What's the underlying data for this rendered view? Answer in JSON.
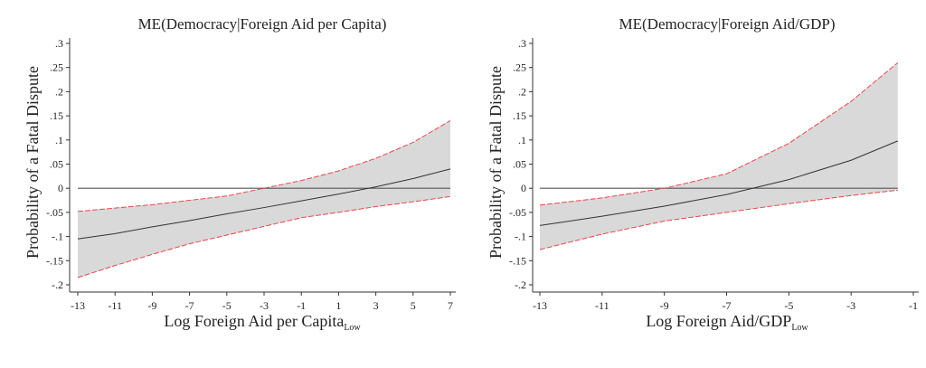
{
  "chart_data": [
    {
      "type": "line",
      "title": "ME(Democracy|Foreign Aid per Capita)",
      "xlabel": "Log Foreign Aid per Capita",
      "xlabel_subscript": "Low",
      "ylabel": "Probability of a Fatal Dispute",
      "xlim": [
        -13,
        7
      ],
      "ylim": [
        -0.2,
        0.3
      ],
      "xticks": [
        "-13",
        "-11",
        "-9",
        "-7",
        "-5",
        "-3",
        "-1",
        "1",
        "3",
        "5",
        "7"
      ],
      "yticks": [
        "-.2",
        "-.15",
        "-.1",
        "-.05",
        "0",
        ".05",
        ".1",
        ".15",
        ".2",
        ".25",
        ".3"
      ],
      "grid": false,
      "x": [
        -13,
        -11,
        -9,
        -7,
        -5,
        -3,
        -1,
        1,
        3,
        5,
        7
      ],
      "series": [
        {
          "role": "estimate",
          "values": [
            -0.105,
            -0.094,
            -0.08,
            -0.067,
            -0.053,
            -0.04,
            -0.026,
            -0.012,
            0.003,
            0.02,
            0.04
          ]
        },
        {
          "role": "upper",
          "values": [
            -0.048,
            -0.041,
            -0.034,
            -0.025,
            -0.016,
            0.0,
            0.016,
            0.036,
            0.062,
            0.095,
            0.14
          ]
        },
        {
          "role": "lower",
          "values": [
            -0.185,
            -0.16,
            -0.137,
            -0.115,
            -0.097,
            -0.079,
            -0.061,
            -0.05,
            -0.038,
            -0.028,
            -0.017
          ]
        }
      ],
      "reference_line": 0
    },
    {
      "type": "line",
      "title": "ME(Democracy|Foreign Aid/GDP)",
      "xlabel": "Log Foreign Aid/GDP",
      "xlabel_subscript": "Low",
      "ylabel": "Probability of a Fatal Dispute",
      "xlim": [
        -13,
        -1
      ],
      "ylim": [
        -0.2,
        0.3
      ],
      "xticks": [
        "-13",
        "-11",
        "-9",
        "-7",
        "-5",
        "-3",
        "-1"
      ],
      "yticks": [
        "-.2",
        "-.15",
        "-.1",
        "-.05",
        "0",
        ".05",
        ".1",
        ".15",
        ".2",
        ".25",
        ".3"
      ],
      "grid": false,
      "x": [
        -13,
        -11,
        -9,
        -7,
        -5,
        -3,
        -1.5
      ],
      "series": [
        {
          "role": "estimate",
          "values": [
            -0.077,
            -0.058,
            -0.037,
            -0.013,
            0.018,
            0.058,
            0.098
          ]
        },
        {
          "role": "upper",
          "values": [
            -0.035,
            -0.02,
            0.0,
            0.03,
            0.093,
            0.18,
            0.26
          ]
        },
        {
          "role": "lower",
          "values": [
            -0.127,
            -0.095,
            -0.068,
            -0.05,
            -0.032,
            -0.015,
            -0.004
          ]
        }
      ],
      "reference_line": 0
    }
  ],
  "colors": {
    "band": "#d9d9d9",
    "ci_line": "#e8474c",
    "estimate": "#333333",
    "axis": "#333333"
  }
}
